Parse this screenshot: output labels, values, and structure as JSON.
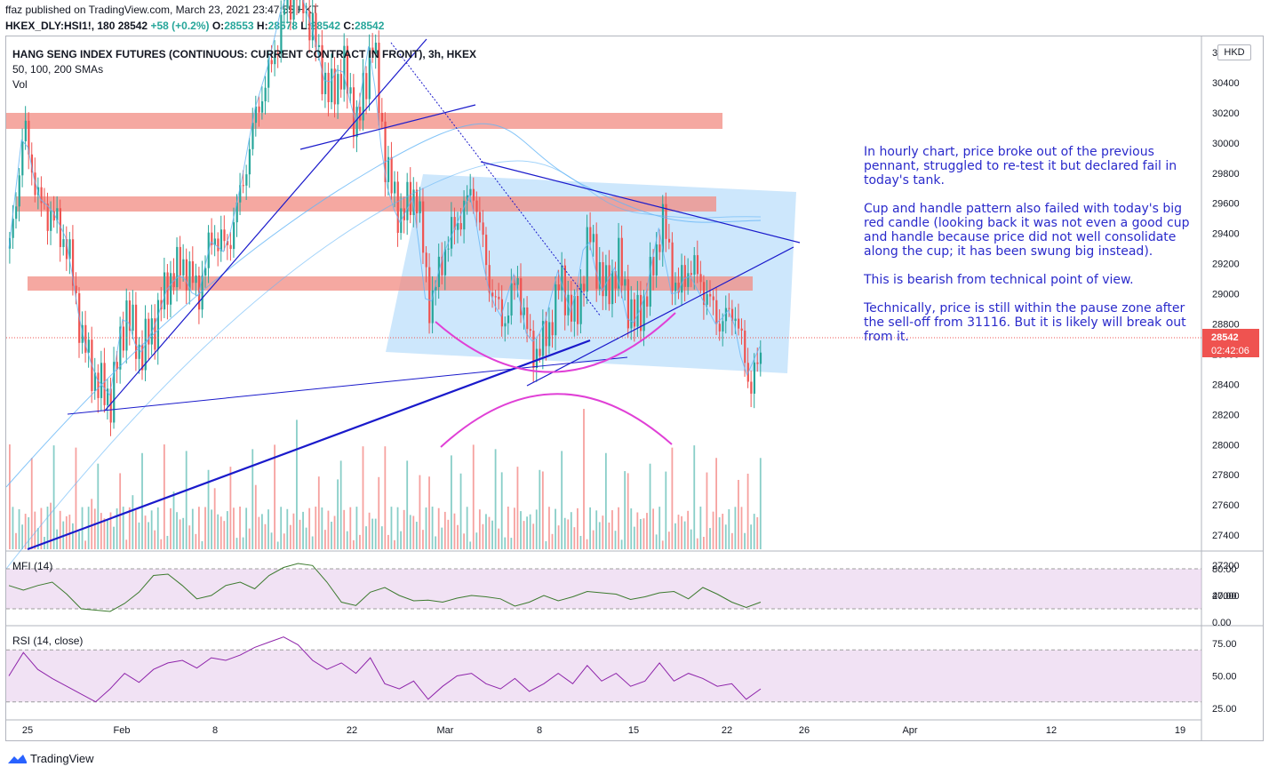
{
  "header": {
    "published": "ffaz published on TradingView.com, March 23, 2021 23:47:55 HKT",
    "symbol_line": {
      "symbol": "HKEX_DLY:HSI1!, 180",
      "last": "28542",
      "change": "+58 (+0.2%)",
      "open_label": "O:",
      "open": "28553",
      "high_label": "H:",
      "high": "28578",
      "low_label": "L:",
      "low": "28542",
      "close_label": "C:",
      "close": "28542"
    }
  },
  "legend": {
    "title": "HANG SENG INDEX FUTURES (CONTINUOUS: CURRENT CONTRACT IN FRONT), 3h, HKEX",
    "smas": "50, 100, 200 SMAs",
    "vol": "Vol",
    "mfi": "MFI (14)",
    "rsi": "RSI (14, close)"
  },
  "currency_badge": "HKD",
  "price_label": {
    "price": "28542",
    "countdown": "02:42:06",
    "color": "#ef5350"
  },
  "annotation": {
    "p1": "In hourly chart, price broke out of the previous pennant, struggled to re-test it but declared fail in today's tank.",
    "p2": "Cup and handle pattern also failed with today's big red candle (looking back it was not even a good cup and handle because price did not well consolidate along the cup; it has been swung big instead).",
    "p3": "This is bearish from technical point of view.",
    "p4": "Technically, price is still within the pause zone after the sell-off from 31116. But it is likely will break out from it."
  },
  "footer": {
    "brand": "TradingView"
  },
  "colors": {
    "up": "#26a69a",
    "down": "#ef5350",
    "zone": "#f28b82",
    "box": "#90caf9",
    "trend": "#1a1acb",
    "cup": "#e040d6",
    "sma": "#64b5f6",
    "mfi": "#3c7a2e",
    "rsi": "#8e24aa"
  },
  "chart_data": [
    {
      "type": "candlestick",
      "ylim": [
        26900,
        30700
      ],
      "yticks": [
        "30600",
        "30400",
        "30200",
        "30000",
        "29800",
        "29600",
        "29400",
        "29200",
        "29000",
        "28800",
        "28600",
        "28400",
        "28200",
        "28000",
        "27800",
        "27600",
        "27400",
        "27200",
        "27000"
      ],
      "xticks": [
        "25",
        "Feb",
        "8",
        "22",
        "Mar",
        "8",
        "15",
        "22",
        "26",
        "Apr",
        "12",
        "19"
      ],
      "close_path": [
        29300,
        30100,
        29600,
        29500,
        29300,
        28700,
        28400,
        28300,
        28900,
        28600,
        28800,
        29100,
        29200,
        29000,
        29400,
        29300,
        29700,
        30200,
        30500,
        30900,
        31000,
        30700,
        30300,
        30500,
        30100,
        30700,
        29800,
        29500,
        29700,
        28900,
        29300,
        29500,
        29700,
        29100,
        28800,
        29100,
        28600,
        28700,
        29100,
        28800,
        29400,
        29000,
        29200,
        28800,
        29000,
        29500,
        29000,
        29200,
        29000,
        28800,
        28900,
        28400,
        28600
      ],
      "horizontal_zones": [
        30150,
        29550,
        28930
      ],
      "volume_note": "volume bars"
    },
    {
      "type": "line",
      "name": "MFI (14)",
      "yticks": [
        "80.00",
        "40.00",
        "0.00"
      ],
      "ylim": [
        0,
        100
      ],
      "band": [
        20,
        80
      ],
      "values": [
        55,
        48,
        55,
        60,
        42,
        20,
        18,
        16,
        28,
        45,
        70,
        72,
        55,
        35,
        40,
        55,
        60,
        50,
        70,
        82,
        88,
        85,
        60,
        30,
        25,
        45,
        52,
        40,
        32,
        33,
        30,
        36,
        40,
        38,
        35,
        24,
        30,
        40,
        32,
        38,
        46,
        44,
        42,
        34,
        38,
        44,
        46,
        35,
        52,
        42,
        30,
        22,
        30
      ]
    },
    {
      "type": "line",
      "name": "RSI (14, close)",
      "yticks": [
        "75.00",
        "50.00",
        "25.00"
      ],
      "ylim": [
        20,
        85
      ],
      "band": [
        30,
        70
      ],
      "values": [
        50,
        68,
        55,
        48,
        42,
        36,
        30,
        40,
        52,
        45,
        55,
        60,
        62,
        56,
        64,
        62,
        66,
        72,
        76,
        80,
        74,
        62,
        55,
        60,
        52,
        64,
        44,
        40,
        46,
        32,
        42,
        50,
        52,
        44,
        40,
        48,
        38,
        44,
        52,
        44,
        58,
        46,
        52,
        42,
        46,
        60,
        46,
        52,
        48,
        42,
        44,
        32,
        40
      ]
    }
  ]
}
